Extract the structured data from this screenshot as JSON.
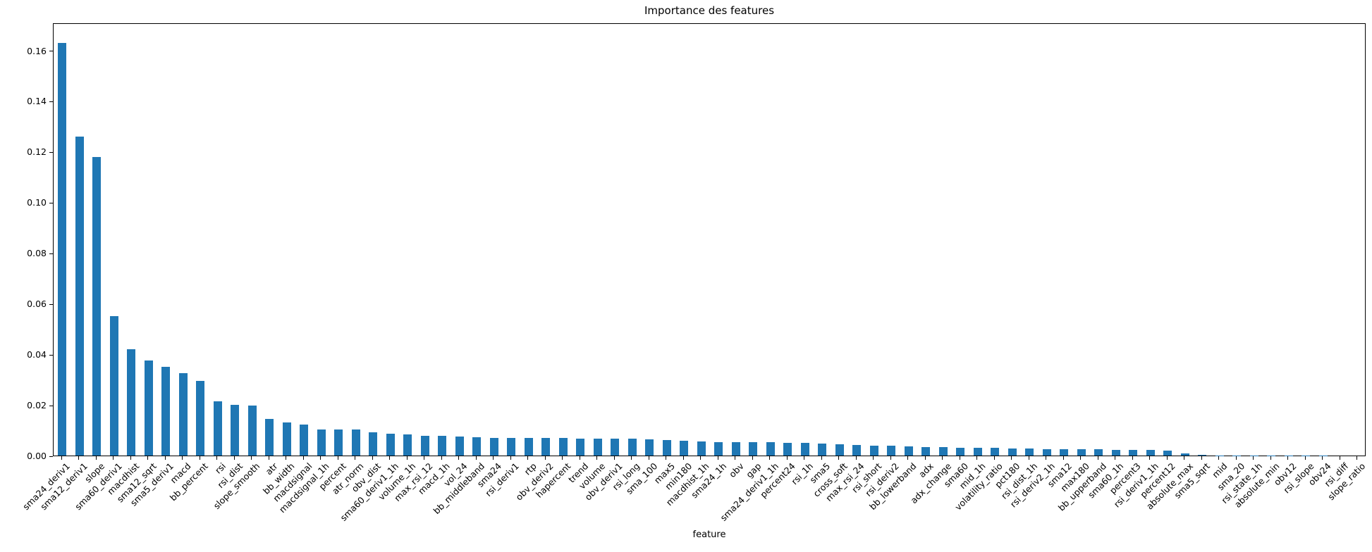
{
  "chart_data": {
    "type": "bar",
    "title": "Importance des features",
    "xlabel": "feature",
    "ylabel": "",
    "ylim": [
      0,
      0.171
    ],
    "yticks": [
      0.0,
      0.02,
      0.04,
      0.06,
      0.08,
      0.1,
      0.12,
      0.14,
      0.16
    ],
    "grid": false,
    "legend": "none",
    "bar_color": "#1f77b4",
    "xtick_rotation_deg": 45,
    "categories": [
      "sma24_deriv1",
      "sma12_deriv1",
      "slope",
      "sma60_deriv1",
      "macdhist",
      "sma12_sqrt",
      "sma5_deriv1",
      "macd",
      "bb_percent",
      "rsi",
      "rsi_dist",
      "slope_smooth",
      "atr",
      "bb_width",
      "macdsignal",
      "macdsignal_1h",
      "percent",
      "atr_norm",
      "obv_dist",
      "sma60_deriv1_1h",
      "volume_1h",
      "max_rsi_12",
      "macd_1h",
      "vol_24",
      "bb_middleband",
      "sma24",
      "rsi_deriv1",
      "rtp",
      "obv_deriv2",
      "hapercent",
      "trend",
      "volume",
      "obv_deriv1",
      "rsi_long",
      "sma_100",
      "max5",
      "min180",
      "macdhist_1h",
      "sma24_1h",
      "obv",
      "gap",
      "sma24_deriv1_1h",
      "percent24",
      "rsi_1h",
      "sma5",
      "cross_soft",
      "max_rsi_24",
      "rsi_short",
      "rsi_deriv2",
      "bb_lowerband",
      "adx",
      "adx_change",
      "sma60",
      "mid_1h",
      "volatility_ratio",
      "pct180",
      "rsi_dist_1h",
      "rsi_deriv2_1h",
      "sma12",
      "max180",
      "bb_upperband",
      "sma60_1h",
      "percent3",
      "rsi_deriv1_1h",
      "percent12",
      "absolute_max",
      "sma5_sqrt",
      "mid",
      "sma_20",
      "rsi_state_1h",
      "absolute_min",
      "obv12",
      "rsi_slope",
      "obv24",
      "rsi_diff",
      "slope_ratio"
    ],
    "values": [
      0.163,
      0.126,
      0.118,
      0.055,
      0.042,
      0.0375,
      0.035,
      0.0325,
      0.0295,
      0.0215,
      0.02,
      0.0198,
      0.0146,
      0.013,
      0.0123,
      0.0104,
      0.0103,
      0.0102,
      0.0093,
      0.0086,
      0.0083,
      0.0078,
      0.0077,
      0.0074,
      0.0071,
      0.007,
      0.007,
      0.007,
      0.0069,
      0.0069,
      0.0068,
      0.0068,
      0.0068,
      0.0066,
      0.0064,
      0.006,
      0.0058,
      0.0055,
      0.0054,
      0.0053,
      0.0053,
      0.0052,
      0.005,
      0.0049,
      0.0048,
      0.0044,
      0.0043,
      0.004,
      0.0038,
      0.0037,
      0.0034,
      0.0033,
      0.0032,
      0.0031,
      0.003,
      0.0029,
      0.0028,
      0.0026,
      0.0026,
      0.0024,
      0.0024,
      0.0023,
      0.0021,
      0.0021,
      0.002,
      0.0007,
      0.0002,
      0.0001,
      0.0001,
      8e-05,
      6e-05,
      5e-05,
      4e-05,
      3e-05,
      2e-05,
      1e-05
    ]
  }
}
